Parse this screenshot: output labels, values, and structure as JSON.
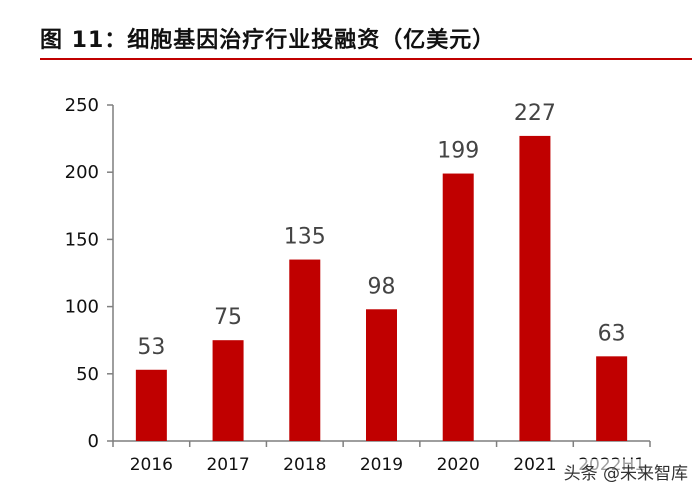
{
  "header": {
    "title": "图 11：细胞基因治疗行业投融资（亿美元）"
  },
  "chart_data": {
    "type": "bar",
    "title": "图 11：细胞基因治疗行业投融资（亿美元）",
    "categories": [
      "2016",
      "2017",
      "2018",
      "2019",
      "2020",
      "2021",
      "2022H1"
    ],
    "values": [
      53,
      75,
      135,
      98,
      199,
      227,
      63
    ],
    "ylim": [
      0,
      250
    ],
    "yticks": [
      0,
      50,
      100,
      150,
      200,
      250
    ],
    "xlabel": "",
    "ylabel": "",
    "grid": false,
    "legend": "none",
    "bar_color": "#c00000",
    "accent_color": "#c00000"
  },
  "watermark": {
    "text": "头条 @未来智库"
  }
}
